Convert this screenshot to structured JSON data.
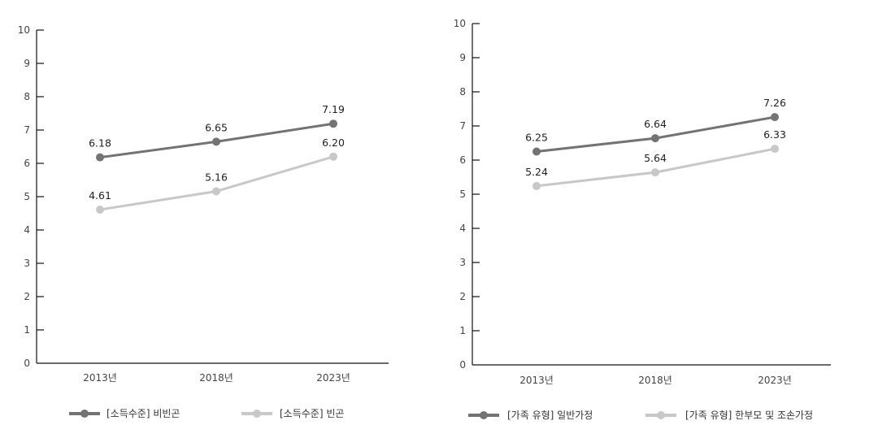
{
  "colors": {
    "dark": "#737373",
    "light": "#c8c8c8",
    "axis": "#111111"
  },
  "chart_data": [
    {
      "type": "line",
      "title": "",
      "xlabel": "",
      "ylabel": "",
      "ylim": [
        0,
        10
      ],
      "yticks": [
        0,
        1,
        2,
        3,
        4,
        5,
        6,
        7,
        8,
        9,
        10
      ],
      "grid": false,
      "legend_position": "bottom",
      "categories": [
        "2013년",
        "2018년",
        "2023년"
      ],
      "series": [
        {
          "name": "[소득수준] 비빈곤",
          "color": "#737373",
          "values": [
            6.18,
            6.65,
            7.19
          ],
          "labels": [
            "6.18",
            "6.65",
            "7.19"
          ]
        },
        {
          "name": "[소득수준] 빈곤",
          "color": "#c8c8c8",
          "values": [
            4.61,
            5.16,
            6.2
          ],
          "labels": [
            "4.61",
            "5.16",
            "6.20"
          ]
        }
      ]
    },
    {
      "type": "line",
      "title": "",
      "xlabel": "",
      "ylabel": "",
      "ylim": [
        0,
        10
      ],
      "yticks": [
        0,
        1,
        2,
        3,
        4,
        5,
        6,
        7,
        8,
        9,
        10
      ],
      "grid": false,
      "legend_position": "bottom",
      "categories": [
        "2013년",
        "2018년",
        "2023년"
      ],
      "series": [
        {
          "name": "[가족 유형] 일반가정",
          "color": "#737373",
          "values": [
            6.25,
            6.64,
            7.26
          ],
          "labels": [
            "6.25",
            "6.64",
            "7.26"
          ]
        },
        {
          "name": "[가족 유형] 한부모 및 조손가정",
          "color": "#c8c8c8",
          "values": [
            5.24,
            5.64,
            6.33
          ],
          "labels": [
            "5.24",
            "5.64",
            "6.33"
          ]
        }
      ]
    }
  ]
}
